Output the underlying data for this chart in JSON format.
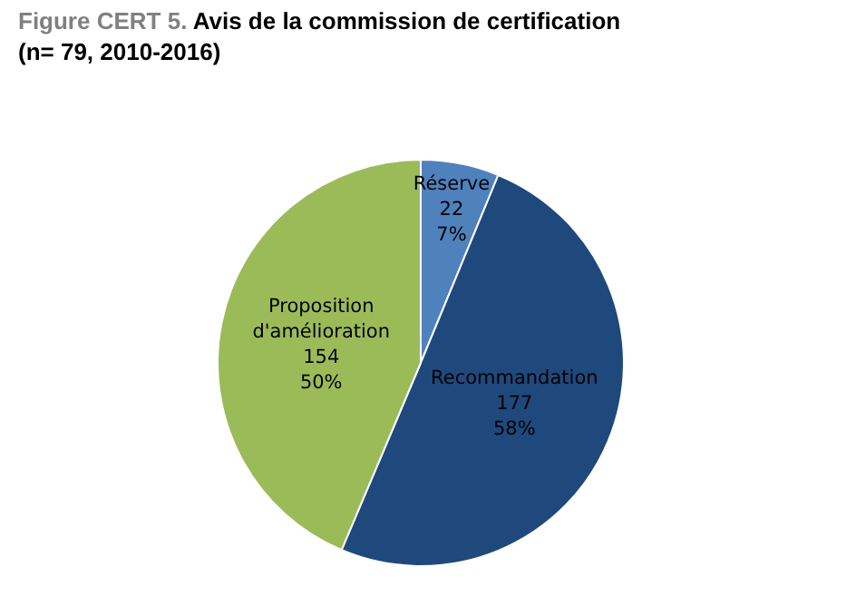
{
  "chart_data": {
    "type": "pie",
    "title": "Figure CERT 5.",
    "subtitle": "Avis de la commission de certification (n= 79, 2010-2016)",
    "categories": [
      "Réserve",
      "Recommandation",
      "Proposition d'amélioration"
    ],
    "values": [
      22,
      177,
      154
    ],
    "value_labels": [
      "22\n7%",
      "177\n58%",
      "154\n50%"
    ],
    "colors": [
      "#4f81bd",
      "#1f497d",
      "#9bbb59"
    ]
  }
}
